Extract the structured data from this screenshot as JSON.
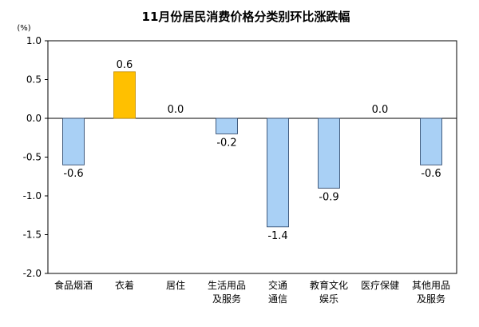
{
  "chart_data": {
    "type": "bar",
    "title": "11月份居民消费价格分类别环比涨跌幅",
    "unit": "(%)",
    "xlabel": "",
    "ylabel": "",
    "ylim": [
      -2.0,
      1.0
    ],
    "yticks": [
      "1.0",
      "0.5",
      "0.0",
      "-0.5",
      "-1.0",
      "-1.5",
      "-2.0"
    ],
    "ytick_values": [
      1.0,
      0.5,
      0.0,
      -0.5,
      -1.0,
      -1.5,
      -2.0
    ],
    "grid": false,
    "categories": [
      [
        "食品烟酒"
      ],
      [
        "衣着"
      ],
      [
        "居住"
      ],
      [
        "生活用品",
        "及服务"
      ],
      [
        "交通",
        "通信"
      ],
      [
        "教育文化",
        "娱乐"
      ],
      [
        "医疗保健"
      ],
      [
        "其他用品",
        "及服务"
      ]
    ],
    "values": [
      -0.6,
      0.6,
      0.0,
      -0.2,
      -1.4,
      -0.9,
      0.0,
      -0.6
    ],
    "value_labels": [
      "-0.6",
      "0.6",
      "0.0",
      "-0.2",
      "-1.4",
      "-0.9",
      "0.0",
      "-0.6"
    ],
    "colors": {
      "positive": "#FFC000",
      "positive_stroke": "#C08A00",
      "negative": "#A9D0F5",
      "negative_stroke": "#1F3A5F",
      "axis": "#000000"
    }
  }
}
